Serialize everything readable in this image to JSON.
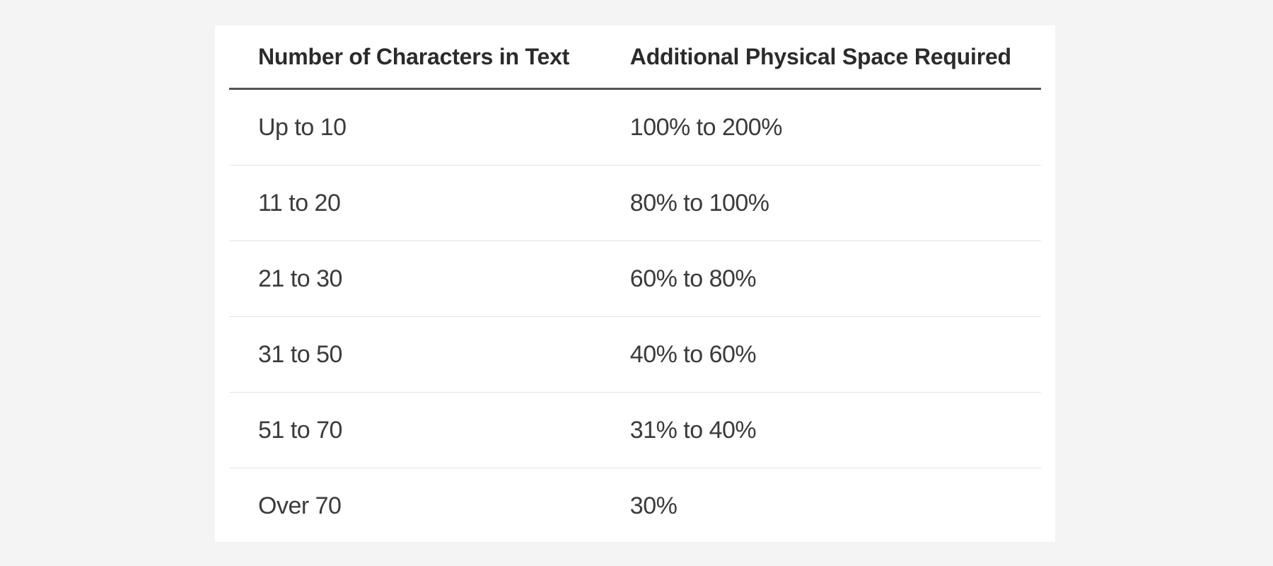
{
  "colors": {
    "page_background": "#f4f4f4",
    "card_background": "#ffffff",
    "header_text": "#2b2b2b",
    "body_text": "#3b3b3b",
    "header_rule": "#555555",
    "row_divider": "#e3e3e3"
  },
  "chart_data": {
    "type": "table",
    "columns": [
      "Number of Characters in Text",
      "Additional Physical Space Required"
    ],
    "rows": [
      [
        "Up to 10",
        "100% to 200%"
      ],
      [
        "11 to 20",
        "80% to 100%"
      ],
      [
        "21 to 30",
        "60% to 80%"
      ],
      [
        "31 to 50",
        "40% to 60%"
      ],
      [
        "51 to 70",
        "31% to 40%"
      ],
      [
        "Over 70",
        "30%"
      ]
    ],
    "title": "",
    "layout_hints": {
      "grid": "horizontal row dividers only",
      "header_rule": "thick dark rule under header",
      "alignment": "left"
    }
  }
}
